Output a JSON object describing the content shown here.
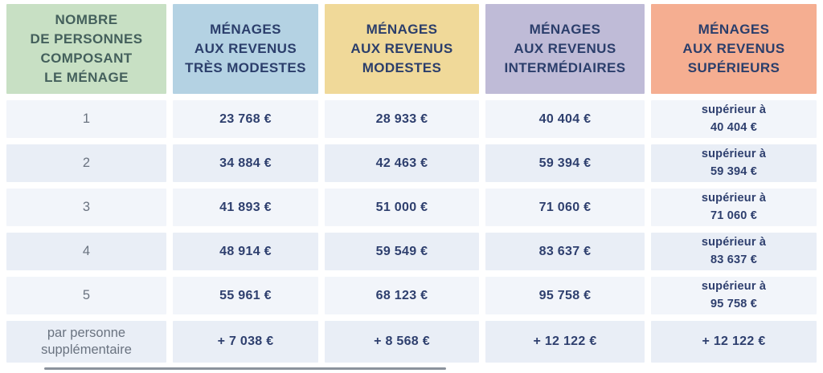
{
  "colors": {
    "page_bg": "#ffffff",
    "header_text": "#2b3e6b",
    "household_header_text": "#44605c",
    "value_text": "#2e3f6e",
    "row_label_text": "#6a7380",
    "row_bg_odd": "#f2f5fa",
    "row_bg_even": "#e9eef6",
    "cropped_line": "#8b929c",
    "col_tres_modestes": "#b4d2e3",
    "col_modestes": "#f0d999",
    "col_intermediaires": "#bfbbd7",
    "col_superieurs": "#f5ae91",
    "col_household": "#c8e0c4"
  },
  "table": {
    "columns": [
      {
        "label": "NOMBRE\nDE PERSONNES\nCOMPOSANT\nLE MÉNAGE",
        "bg": "#c8e0c4",
        "text": "#44605c"
      },
      {
        "label": "MÉNAGES\nAUX REVENUS\nTRÈS MODESTES",
        "bg": "#b4d2e3",
        "text": "#2b3e6b"
      },
      {
        "label": "MÉNAGES\nAUX REVENUS\nMODESTES",
        "bg": "#f0d999",
        "text": "#2b3e6b"
      },
      {
        "label": "MÉNAGES\nAUX REVENUS\nINTERMÉDIAIRES",
        "bg": "#bfbbd7",
        "text": "#2b3e6b"
      },
      {
        "label": "MÉNAGES\nAUX REVENUS\nSUPÉRIEURS",
        "bg": "#f5ae91",
        "text": "#2b3e6b"
      }
    ],
    "rows": [
      {
        "label": "1",
        "values": [
          "23 768 €",
          "28 933 €",
          "40 404 €",
          "supérieur à\n40 404 €"
        ]
      },
      {
        "label": "2",
        "values": [
          "34 884 €",
          "42 463 €",
          "59 394 €",
          "supérieur à\n59 394 €"
        ]
      },
      {
        "label": "3",
        "values": [
          "41 893 €",
          "51 000 €",
          "71 060 €",
          "supérieur à\n71 060 €"
        ]
      },
      {
        "label": "4",
        "values": [
          "48 914 €",
          "59 549 €",
          "83 637 €",
          "supérieur à\n83 637 €"
        ]
      },
      {
        "label": "5",
        "values": [
          "55 961 €",
          "68 123 €",
          "95 758 €",
          "supérieur à\n95 758 €"
        ]
      },
      {
        "label": "par personne\nsupplémentaire",
        "values": [
          "+ 7 038 €",
          "+ 8 568 €",
          "+ 12 122 €",
          "+ 12 122 €"
        ]
      }
    ]
  }
}
